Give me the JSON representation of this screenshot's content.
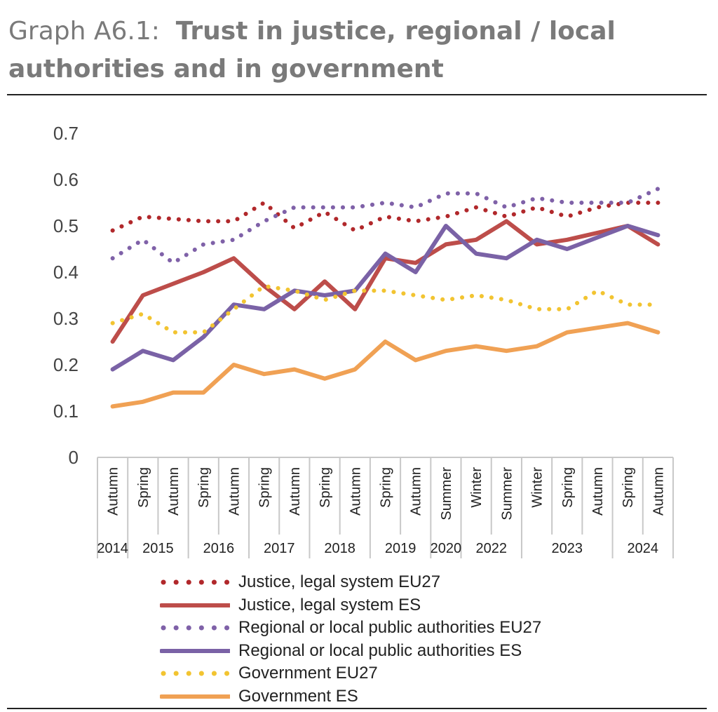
{
  "title": {
    "prefix": "Graph A6.1:",
    "line1": "Trust in justice, regional / local",
    "line2": "authorities and in government"
  },
  "chart_data": {
    "type": "line",
    "categories": [
      "Autumn",
      "Spring",
      "Autumn",
      "Spring",
      "Autumn",
      "Spring",
      "Autumn",
      "Spring",
      "Autumn",
      "Spring",
      "Autumn",
      "Summer",
      "Winter",
      "Summer",
      "Winter",
      "Spring",
      "Autumn",
      "Spring",
      "Autumn"
    ],
    "years": [
      {
        "label": "2014",
        "span": [
          0,
          0
        ]
      },
      {
        "label": "2015",
        "span": [
          1,
          2
        ]
      },
      {
        "label": "2016",
        "span": [
          3,
          4
        ]
      },
      {
        "label": "2017",
        "span": [
          5,
          6
        ]
      },
      {
        "label": "2018",
        "span": [
          7,
          8
        ]
      },
      {
        "label": "2019",
        "span": [
          9,
          10
        ]
      },
      {
        "label": "2020",
        "span": [
          11,
          11
        ]
      },
      {
        "label": "2022",
        "span": [
          12,
          13
        ]
      },
      {
        "label": "2023",
        "span": [
          14,
          16
        ]
      },
      {
        "label": "2024",
        "span": [
          17,
          18
        ]
      }
    ],
    "ylim": [
      0,
      0.7
    ],
    "yticks": [
      "0",
      "0.1",
      "0.2",
      "0.3",
      "0.4",
      "0.5",
      "0.6",
      "0.7"
    ],
    "yticks_values": [
      0,
      0.1,
      0.2,
      0.3,
      0.4,
      0.5,
      0.6,
      0.7
    ],
    "legend_position": "bottom",
    "series": [
      {
        "name": "Justice,  legal system EU27",
        "style": "dotted",
        "color": "#b1282b",
        "values": [
          0.49,
          0.52,
          0.515,
          0.51,
          0.51,
          0.55,
          0.495,
          0.53,
          0.49,
          0.52,
          0.51,
          0.52,
          0.54,
          0.52,
          0.54,
          0.52,
          0.54,
          0.55,
          0.55
        ]
      },
      {
        "name": "Justice,  legal system ES",
        "style": "solid",
        "color": "#bd4d4a",
        "values": [
          0.25,
          0.35,
          0.375,
          0.4,
          0.43,
          0.37,
          0.32,
          0.38,
          0.32,
          0.43,
          0.42,
          0.46,
          0.47,
          0.51,
          0.46,
          0.47,
          0.485,
          0.5,
          0.46
        ]
      },
      {
        "name": "Regional or local public authorities EU27",
        "style": "dotted",
        "color": "#7f61a8",
        "values": [
          0.43,
          0.47,
          0.42,
          0.46,
          0.47,
          0.51,
          0.54,
          0.54,
          0.54,
          0.55,
          0.54,
          0.57,
          0.57,
          0.54,
          0.56,
          0.55,
          0.55,
          0.55,
          0.58
        ]
      },
      {
        "name": "Regional or local public authorities ES",
        "style": "solid",
        "color": "#7a62a6",
        "values": [
          0.19,
          0.23,
          0.21,
          0.26,
          0.33,
          0.32,
          0.36,
          0.35,
          0.36,
          0.44,
          0.4,
          0.5,
          0.44,
          0.43,
          0.47,
          0.45,
          0.475,
          0.5,
          0.48
        ]
      },
      {
        "name": "Government  EU27",
        "style": "dotted",
        "color": "#f2c431",
        "values": [
          0.29,
          0.31,
          0.27,
          0.27,
          0.32,
          0.37,
          0.36,
          0.34,
          0.36,
          0.36,
          0.35,
          0.34,
          0.35,
          0.34,
          0.32,
          0.32,
          0.36,
          0.33,
          0.33
        ]
      },
      {
        "name": "Government  ES",
        "style": "solid",
        "color": "#f0a154",
        "values": [
          0.11,
          0.12,
          0.14,
          0.14,
          0.2,
          0.18,
          0.19,
          0.17,
          0.19,
          0.25,
          0.21,
          0.23,
          0.24,
          0.23,
          0.24,
          0.27,
          0.28,
          0.29,
          0.27
        ]
      }
    ]
  }
}
